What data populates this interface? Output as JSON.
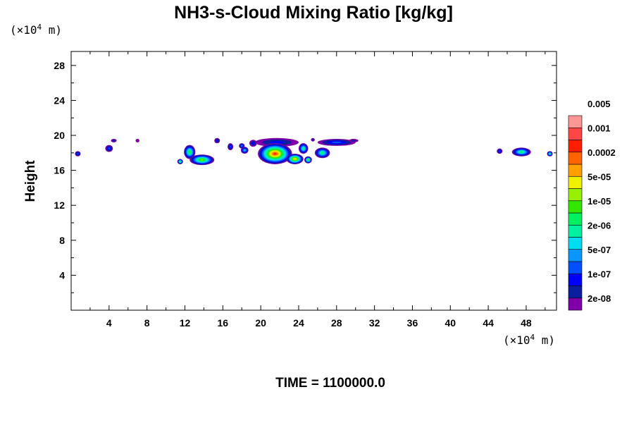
{
  "chart_data": {
    "type": "heatmap",
    "title": "NH3-s-Cloud Mixing Ratio [kg/kg]",
    "xlabel": "",
    "ylabel": "Height",
    "x_unit_prefix": "(×10",
    "x_unit_exp": "4",
    "x_unit_suffix": " m)",
    "y_unit_prefix": "(×10",
    "y_unit_exp": "4",
    "y_unit_suffix": " m)",
    "xlim": [
      0,
      51.2
    ],
    "ylim": [
      0,
      29.6
    ],
    "x_ticks": [
      4,
      8,
      12,
      16,
      20,
      24,
      28,
      32,
      36,
      40,
      44,
      48
    ],
    "y_ticks": [
      4,
      8,
      12,
      16,
      20,
      24,
      28
    ],
    "footer": "TIME = 1100000.0",
    "colorbar": {
      "colors": [
        "#7f00a8",
        "#0a1ea0",
        "#0000ff",
        "#0050ff",
        "#0a96ff",
        "#00dcf0",
        "#00f0a0",
        "#00f060",
        "#32e600",
        "#96f000",
        "#f0f000",
        "#ffa000",
        "#ff6400",
        "#ff1e00",
        "#ff4646",
        "#ff9696"
      ],
      "labels": [
        "2e-08",
        "1e-07",
        "5e-07",
        "2e-06",
        "1e-05",
        "5e-05",
        "0.0002",
        "0.001",
        "0.005"
      ]
    },
    "cloud_blobs": [
      {
        "x": 0.7,
        "y": 17.9,
        "rx": 0.3,
        "ry": 0.3,
        "peak": 3
      },
      {
        "x": 4.0,
        "y": 18.5,
        "rx": 0.4,
        "ry": 0.4,
        "peak": 3
      },
      {
        "x": 4.5,
        "y": 19.4,
        "rx": 0.3,
        "ry": 0.2,
        "peak": 1
      },
      {
        "x": 7.0,
        "y": 19.4,
        "rx": 0.2,
        "ry": 0.2,
        "peak": 0
      },
      {
        "x": 11.5,
        "y": 17.0,
        "rx": 0.3,
        "ry": 0.3,
        "peak": 8
      },
      {
        "x": 12.5,
        "y": 18.1,
        "rx": 0.6,
        "ry": 0.8,
        "peak": 8
      },
      {
        "x": 13.8,
        "y": 17.2,
        "rx": 1.3,
        "ry": 0.6,
        "peak": 9
      },
      {
        "x": 15.4,
        "y": 19.4,
        "rx": 0.3,
        "ry": 0.3,
        "peak": 2
      },
      {
        "x": 16.8,
        "y": 18.7,
        "rx": 0.3,
        "ry": 0.4,
        "peak": 3
      },
      {
        "x": 18.3,
        "y": 18.3,
        "rx": 0.4,
        "ry": 0.4,
        "peak": 5
      },
      {
        "x": 18.0,
        "y": 18.8,
        "rx": 0.3,
        "ry": 0.3,
        "peak": 4
      },
      {
        "x": 19.2,
        "y": 19.1,
        "rx": 0.4,
        "ry": 0.4,
        "peak": 2
      },
      {
        "x": 21.7,
        "y": 19.2,
        "rx": 2.3,
        "ry": 0.5,
        "peak": 2
      },
      {
        "x": 21.5,
        "y": 17.9,
        "rx": 1.8,
        "ry": 1.2,
        "peak": 13
      },
      {
        "x": 23.6,
        "y": 17.3,
        "rx": 0.9,
        "ry": 0.6,
        "peak": 11
      },
      {
        "x": 24.5,
        "y": 18.5,
        "rx": 0.5,
        "ry": 0.6,
        "peak": 7
      },
      {
        "x": 25.0,
        "y": 17.2,
        "rx": 0.4,
        "ry": 0.4,
        "peak": 9
      },
      {
        "x": 25.5,
        "y": 19.5,
        "rx": 0.2,
        "ry": 0.2,
        "peak": 1
      },
      {
        "x": 26.5,
        "y": 18.0,
        "rx": 0.8,
        "ry": 0.6,
        "peak": 7
      },
      {
        "x": 28.0,
        "y": 19.2,
        "rx": 2.0,
        "ry": 0.4,
        "peak": 3
      },
      {
        "x": 29.8,
        "y": 19.4,
        "rx": 0.5,
        "ry": 0.2,
        "peak": 1
      },
      {
        "x": 45.2,
        "y": 18.2,
        "rx": 0.3,
        "ry": 0.3,
        "peak": 3
      },
      {
        "x": 47.5,
        "y": 18.1,
        "rx": 1.0,
        "ry": 0.5,
        "peak": 7
      },
      {
        "x": 50.5,
        "y": 17.9,
        "rx": 0.3,
        "ry": 0.3,
        "peak": 7
      }
    ]
  }
}
